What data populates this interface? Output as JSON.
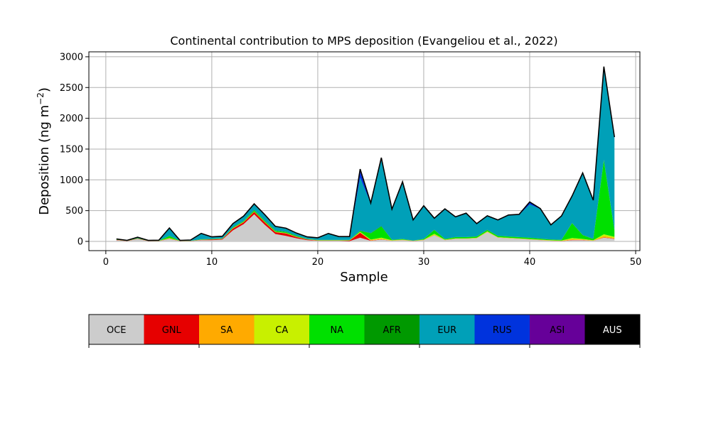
{
  "chart_data": {
    "type": "area",
    "title": "Continental contribution to MPS deposition (Evangeliou et al., 2022)",
    "xlabel": "Sample",
    "ylabel": "Deposition (ng m",
    "ylabel_exponent": "−2",
    "ylabel_close": ")",
    "xlim": [
      -1.6,
      50.4
    ],
    "ylim": [
      -150,
      3080
    ],
    "xticks": [
      0,
      10,
      20,
      30,
      40,
      50
    ],
    "yticks": [
      0,
      500,
      1000,
      1500,
      2000,
      2500,
      3000
    ],
    "grid": true,
    "x": [
      1,
      2,
      3,
      4,
      5,
      6,
      7,
      8,
      9,
      10,
      11,
      12,
      13,
      14,
      15,
      16,
      17,
      18,
      19,
      20,
      21,
      22,
      23,
      24,
      25,
      26,
      27,
      28,
      29,
      30,
      31,
      32,
      33,
      34,
      35,
      36,
      37,
      38,
      39,
      40,
      41,
      42,
      43,
      44,
      45,
      46,
      47,
      48
    ],
    "series": [
      {
        "name": "OCE",
        "color": "#cccccc",
        "values": [
          20,
          5,
          40,
          5,
          5,
          40,
          5,
          5,
          20,
          20,
          30,
          180,
          280,
          440,
          270,
          120,
          90,
          50,
          20,
          10,
          10,
          10,
          5,
          60,
          10,
          30,
          10,
          20,
          5,
          20,
          100,
          20,
          40,
          40,
          50,
          150,
          60,
          50,
          40,
          30,
          20,
          10,
          5,
          20,
          20,
          10,
          60,
          40
        ]
      },
      {
        "name": "GNL",
        "color": "#e60000",
        "values": [
          5,
          2,
          5,
          2,
          2,
          5,
          2,
          2,
          5,
          10,
          10,
          30,
          30,
          40,
          40,
          30,
          40,
          20,
          10,
          5,
          5,
          5,
          10,
          80,
          5,
          5,
          2,
          2,
          2,
          2,
          2,
          2,
          2,
          2,
          2,
          2,
          2,
          2,
          2,
          2,
          2,
          2,
          2,
          5,
          5,
          2,
          5,
          5
        ]
      },
      {
        "name": "SA",
        "color": "#ffaa00",
        "values": [
          1,
          1,
          1,
          1,
          1,
          1,
          1,
          1,
          1,
          1,
          1,
          2,
          2,
          2,
          2,
          2,
          2,
          2,
          1,
          1,
          1,
          1,
          1,
          5,
          5,
          5,
          2,
          2,
          1,
          2,
          2,
          2,
          2,
          2,
          2,
          2,
          2,
          2,
          2,
          2,
          2,
          2,
          2,
          10,
          5,
          2,
          20,
          10
        ]
      },
      {
        "name": "CA",
        "color": "#c8f000",
        "values": [
          2,
          1,
          2,
          1,
          1,
          10,
          1,
          1,
          2,
          2,
          2,
          5,
          5,
          5,
          5,
          5,
          5,
          5,
          2,
          2,
          2,
          2,
          2,
          10,
          10,
          20,
          5,
          5,
          2,
          5,
          20,
          5,
          5,
          5,
          5,
          10,
          5,
          5,
          5,
          5,
          5,
          5,
          5,
          20,
          10,
          5,
          30,
          20
        ]
      },
      {
        "name": "NA",
        "color": "#00e000",
        "values": [
          3,
          1,
          5,
          1,
          1,
          30,
          1,
          1,
          5,
          5,
          5,
          10,
          10,
          20,
          15,
          15,
          15,
          10,
          5,
          5,
          5,
          5,
          5,
          15,
          100,
          180,
          5,
          10,
          2,
          10,
          60,
          10,
          20,
          20,
          20,
          20,
          20,
          20,
          20,
          20,
          15,
          10,
          10,
          240,
          60,
          20,
          1200,
          100
        ]
      },
      {
        "name": "AFR",
        "color": "#009900",
        "values": [
          1,
          1,
          1,
          1,
          1,
          5,
          1,
          1,
          2,
          2,
          2,
          5,
          5,
          5,
          5,
          5,
          5,
          5,
          2,
          2,
          2,
          2,
          2,
          5,
          5,
          10,
          2,
          2,
          2,
          2,
          5,
          2,
          2,
          2,
          2,
          5,
          2,
          2,
          2,
          2,
          2,
          2,
          2,
          5,
          5,
          2,
          10,
          5
        ]
      },
      {
        "name": "EUR",
        "color": "#00a0b8",
        "values": [
          3,
          4,
          10,
          4,
          6,
          120,
          4,
          10,
          90,
          30,
          30,
          50,
          70,
          90,
          90,
          60,
          50,
          35,
          30,
          30,
          100,
          50,
          50,
          860,
          480,
          1080,
          490,
          920,
          330,
          530,
          180,
          480,
          320,
          380,
          200,
          220,
          250,
          340,
          360,
          540,
          480,
          230,
          380,
          430,
          1000,
          620,
          1500,
          1500
        ]
      },
      {
        "name": "RUS",
        "color": "#0033dd",
        "values": [
          3,
          1,
          2,
          1,
          1,
          5,
          1,
          1,
          3,
          2,
          2,
          5,
          5,
          5,
          5,
          5,
          5,
          5,
          2,
          2,
          2,
          2,
          2,
          100,
          5,
          20,
          5,
          5,
          3,
          5,
          5,
          5,
          5,
          5,
          5,
          5,
          5,
          5,
          5,
          30,
          5,
          5,
          5,
          5,
          5,
          5,
          10,
          10
        ]
      },
      {
        "name": "ASI",
        "color": "#660099",
        "values": [
          2,
          1,
          2,
          1,
          1,
          2,
          1,
          1,
          2,
          2,
          2,
          3,
          3,
          3,
          3,
          3,
          3,
          3,
          2,
          2,
          2,
          2,
          2,
          40,
          3,
          10,
          3,
          3,
          2,
          3,
          3,
          3,
          3,
          3,
          3,
          3,
          3,
          3,
          3,
          10,
          3,
          3,
          3,
          3,
          3,
          3,
          5,
          5
        ]
      },
      {
        "name": "AUS",
        "color": "#000000",
        "values": [
          0,
          0,
          0,
          0,
          0,
          0,
          0,
          0,
          0,
          0,
          0,
          0,
          0,
          0,
          0,
          0,
          0,
          0,
          0,
          0,
          0,
          0,
          0,
          0,
          0,
          0,
          0,
          0,
          0,
          0,
          0,
          0,
          0,
          0,
          0,
          0,
          0,
          0,
          0,
          0,
          0,
          0,
          0,
          0,
          0,
          0,
          0,
          0
        ]
      }
    ],
    "legend": {
      "placement": "bottom",
      "entries": [
        {
          "name": "OCE",
          "color": "#cccccc",
          "text_color": "#000000"
        },
        {
          "name": "GNL",
          "color": "#e60000",
          "text_color": "#000000"
        },
        {
          "name": "SA",
          "color": "#ffaa00",
          "text_color": "#000000"
        },
        {
          "name": "CA",
          "color": "#c8f000",
          "text_color": "#000000"
        },
        {
          "name": "NA",
          "color": "#00e000",
          "text_color": "#000000"
        },
        {
          "name": "AFR",
          "color": "#009900",
          "text_color": "#000000"
        },
        {
          "name": "EUR",
          "color": "#00a0b8",
          "text_color": "#000000"
        },
        {
          "name": "RUS",
          "color": "#0033dd",
          "text_color": "#000000"
        },
        {
          "name": "ASI",
          "color": "#660099",
          "text_color": "#000000"
        },
        {
          "name": "AUS",
          "color": "#000000",
          "text_color": "#ffffff"
        }
      ]
    }
  }
}
